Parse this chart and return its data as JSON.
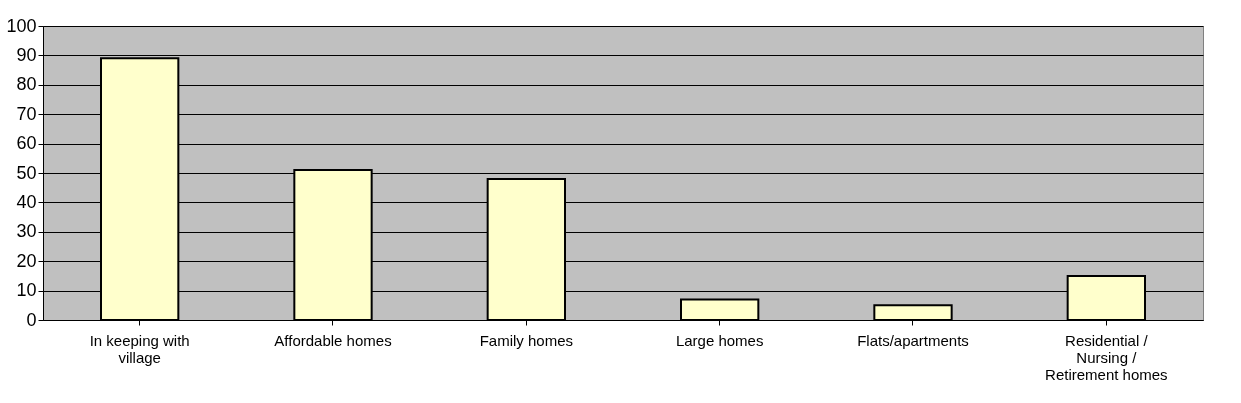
{
  "chart_data": {
    "type": "bar",
    "categories": [
      "In keeping with village",
      "Affordable homes",
      "Family homes",
      "Large homes",
      "Flats/apartments",
      "Residential / Nursing / Retirement homes"
    ],
    "values": [
      89,
      51,
      48,
      7,
      5,
      15
    ],
    "color": "#ffffcc",
    "ylim": [
      0,
      100
    ],
    "yticks": [
      0,
      10,
      20,
      30,
      40,
      50,
      60,
      70,
      80,
      90,
      100
    ],
    "grid": "y"
  }
}
